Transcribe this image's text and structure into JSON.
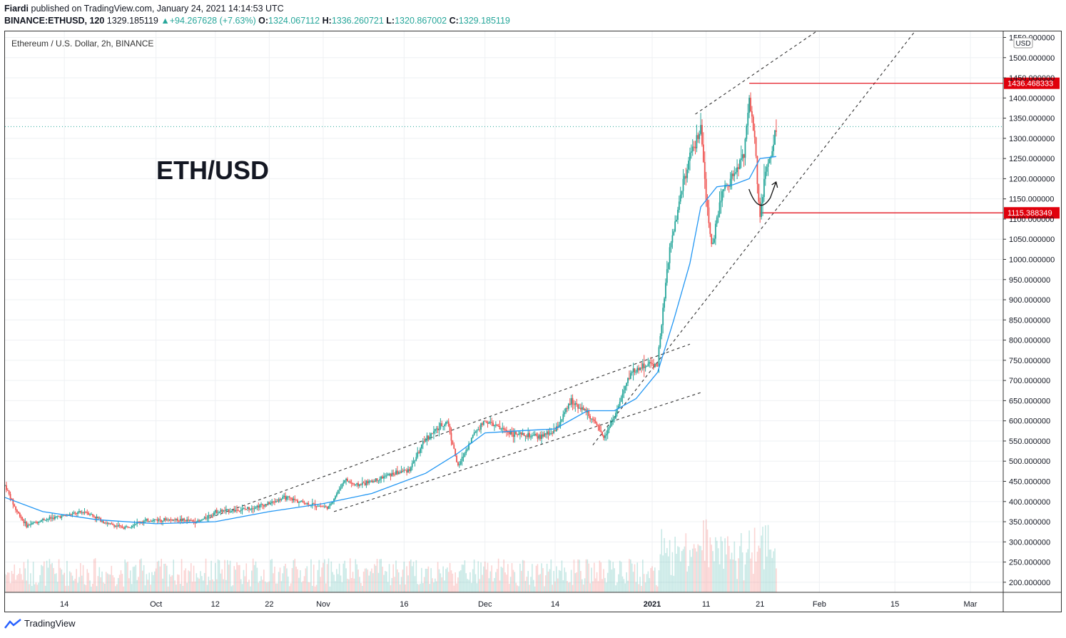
{
  "header": {
    "publisher": "Fiardi",
    "published_text": "published on TradingView.com, January 24, 2021 14:14:53 UTC",
    "symbol": "BINANCE:ETHUSD, 120",
    "last": "1329.185119",
    "change": "+94.267628 (+7.63%)",
    "o_label": "O:",
    "o_value": "1324.067112",
    "h_label": "H:",
    "h_value": "1336.260721",
    "l_label": "L:",
    "l_value": "1320.867002",
    "c_label": "C:",
    "c_value": "1329.185119"
  },
  "footer": {
    "brand": "TradingView"
  },
  "colors": {
    "up": "#26a69a",
    "down": "#ef5350",
    "ma": "#2196f3",
    "level": "#e0000c",
    "trend": "#333333"
  },
  "chart_data": {
    "type": "line",
    "title": "ETH/USD",
    "subtitle": "Ethereum / U.S. Dollar, 2h, BINANCE",
    "currency": "USD",
    "grid": true,
    "ylim": [
      175,
      1565
    ],
    "y_ticks": [
      "200.000000",
      "250.000000",
      "300.000000",
      "350.000000",
      "400.000000",
      "450.000000",
      "500.000000",
      "550.000000",
      "600.000000",
      "650.000000",
      "700.000000",
      "750.000000",
      "800.000000",
      "850.000000",
      "900.000000",
      "950.000000",
      "1000.000000",
      "1050.000000",
      "1100.000000",
      "1150.000000",
      "1200.000000",
      "1250.000000",
      "1300.000000",
      "1350.000000",
      "1400.000000",
      "1450.000000",
      "1500.000000",
      "1550.000000"
    ],
    "x_ticks": [
      {
        "label": "14",
        "date": "2020-09-14",
        "bold": false
      },
      {
        "label": "Oct",
        "date": "2020-10-01",
        "bold": false
      },
      {
        "label": "12",
        "date": "2020-10-12",
        "bold": false
      },
      {
        "label": "22",
        "date": "2020-10-22",
        "bold": false
      },
      {
        "label": "Nov",
        "date": "2020-11-01",
        "bold": false
      },
      {
        "label": "16",
        "date": "2020-11-16",
        "bold": false
      },
      {
        "label": "Dec",
        "date": "2020-12-01",
        "bold": false
      },
      {
        "label": "14",
        "date": "2020-12-14",
        "bold": false
      },
      {
        "label": "2021",
        "date": "2021-01-01",
        "bold": true
      },
      {
        "label": "11",
        "date": "2021-01-11",
        "bold": false
      },
      {
        "label": "21",
        "date": "2021-01-21",
        "bold": false
      },
      {
        "label": "Feb",
        "date": "2021-02-01",
        "bold": false
      },
      {
        "label": "15",
        "date": "2021-02-15",
        "bold": false
      },
      {
        "label": "Mar",
        "date": "2021-03-01",
        "bold": false
      }
    ],
    "price": {
      "x": [
        "2020-09-03",
        "2020-09-05",
        "2020-09-07",
        "2020-09-10",
        "2020-09-14",
        "2020-09-18",
        "2020-09-22",
        "2020-09-25",
        "2020-09-28",
        "2020-10-01",
        "2020-10-05",
        "2020-10-09",
        "2020-10-12",
        "2020-10-17",
        "2020-10-22",
        "2020-10-25",
        "2020-10-29",
        "2020-11-02",
        "2020-11-05",
        "2020-11-07",
        "2020-11-10",
        "2020-11-13",
        "2020-11-17",
        "2020-11-20",
        "2020-11-24",
        "2020-11-26",
        "2020-11-29",
        "2020-12-01",
        "2020-12-04",
        "2020-12-07",
        "2020-12-11",
        "2020-12-14",
        "2020-12-17",
        "2020-12-20",
        "2020-12-23",
        "2020-12-25",
        "2020-12-28",
        "2020-12-31",
        "2021-01-02",
        "2021-01-04",
        "2021-01-06",
        "2021-01-08",
        "2021-01-10",
        "2021-01-11",
        "2021-01-12",
        "2021-01-14",
        "2021-01-16",
        "2021-01-18",
        "2021-01-19",
        "2021-01-20",
        "2021-01-21",
        "2021-01-22",
        "2021-01-23",
        "2021-01-24"
      ],
      "y": [
        440,
        380,
        340,
        355,
        365,
        375,
        345,
        335,
        350,
        355,
        355,
        350,
        375,
        380,
        395,
        410,
        395,
        385,
        455,
        440,
        450,
        465,
        480,
        555,
        600,
        485,
        570,
        600,
        580,
        565,
        560,
        575,
        650,
        620,
        560,
        610,
        720,
        740,
        740,
        1000,
        1150,
        1250,
        1320,
        1150,
        1030,
        1170,
        1210,
        1260,
        1400,
        1300,
        1100,
        1220,
        1250,
        1330
      ]
    },
    "ma": {
      "x": [
        "2020-09-03",
        "2020-09-10",
        "2020-09-20",
        "2020-10-01",
        "2020-10-12",
        "2020-10-22",
        "2020-11-01",
        "2020-11-10",
        "2020-11-20",
        "2020-11-26",
        "2020-12-01",
        "2020-12-07",
        "2020-12-14",
        "2020-12-20",
        "2020-12-25",
        "2020-12-29",
        "2021-01-02",
        "2021-01-05",
        "2021-01-08",
        "2021-01-10",
        "2021-01-13",
        "2021-01-16",
        "2021-01-19",
        "2021-01-21",
        "2021-01-24"
      ],
      "y": [
        410,
        375,
        355,
        345,
        350,
        375,
        395,
        420,
        470,
        520,
        570,
        575,
        580,
        625,
        625,
        655,
        720,
        850,
        990,
        1130,
        1180,
        1185,
        1200,
        1250,
        1255
      ]
    },
    "levels": [
      {
        "label": "1436.468333",
        "value": 1436.468333,
        "from": "2021-01-19"
      },
      {
        "label": "1115.388349",
        "value": 1115.388349,
        "from": "2021-01-21"
      }
    ],
    "current_price": 1329.185119,
    "trendlines": [
      {
        "from": {
          "date": "2021-01-09",
          "price": 1360
        },
        "to": {
          "date": "2021-02-01",
          "price": 1570
        }
      },
      {
        "from": {
          "date": "2020-12-21",
          "price": 540
        },
        "to": {
          "date": "2021-02-19",
          "price": 1570
        }
      },
      {
        "from": {
          "date": "2020-10-11",
          "price": 360
        },
        "to": {
          "date": "2021-01-08",
          "price": 790
        }
      },
      {
        "from": {
          "date": "2020-11-03",
          "price": 375
        },
        "to": {
          "date": "2021-01-10",
          "price": 670
        }
      }
    ]
  }
}
